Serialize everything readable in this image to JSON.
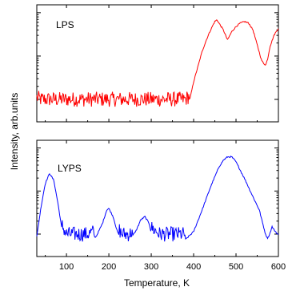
{
  "chart_data": [
    {
      "type": "line",
      "panel": "top",
      "series": [
        {
          "name": "LPS",
          "color": "#ff0000"
        }
      ],
      "panel_label": "LPS",
      "x": [
        30,
        40,
        60,
        80,
        100,
        150,
        200,
        250,
        300,
        350,
        380,
        390,
        395,
        400,
        410,
        420,
        430,
        440,
        450,
        455,
        460,
        470,
        480,
        490,
        500,
        510,
        520,
        530,
        540,
        550,
        560,
        565,
        570,
        575,
        580,
        590,
        600
      ],
      "y": [
        1.1,
        1.0,
        1.0,
        1.0,
        1.0,
        1.0,
        1.0,
        1.0,
        1.0,
        1.0,
        1.0,
        1.2,
        1.8,
        2.4,
        3.3,
        4.2,
        4.9,
        5.5,
        6.0,
        6.1,
        5.9,
        5.5,
        4.9,
        5.4,
        5.7,
        5.9,
        6.0,
        5.9,
        5.5,
        4.6,
        3.7,
        3.5,
        3.4,
        3.8,
        4.5,
        5.2,
        5.6
      ],
      "noise_floor_range": [
        30,
        390
      ],
      "ylim": [
        0,
        7
      ],
      "yscale": "log",
      "yticks": "unlabeled"
    },
    {
      "type": "line",
      "panel": "bottom",
      "series": [
        {
          "name": "LYPS",
          "color": "#0000ff"
        }
      ],
      "panel_label": "LYPS",
      "x": [
        30,
        40,
        50,
        60,
        70,
        80,
        90,
        100,
        150,
        170,
        185,
        195,
        200,
        210,
        220,
        230,
        250,
        265,
        275,
        285,
        295,
        300,
        320,
        350,
        380,
        400,
        420,
        440,
        460,
        470,
        480,
        490,
        500,
        520,
        540,
        555,
        565,
        570,
        575,
        580,
        585,
        590,
        600
      ],
      "y": [
        1.2,
        3.0,
        4.4,
        5.0,
        4.6,
        3.2,
        1.5,
        1.0,
        1.0,
        1.2,
        2.0,
        2.8,
        2.9,
        2.4,
        1.5,
        1.0,
        1.0,
        1.6,
        2.2,
        2.4,
        2.0,
        1.4,
        1.0,
        1.0,
        1.0,
        1.5,
        2.8,
        4.2,
        5.4,
        5.8,
        6.0,
        6.0,
        5.7,
        4.7,
        3.6,
        2.8,
        1.8,
        1.3,
        1.1,
        1.4,
        1.8,
        1.6,
        1.3
      ],
      "noise_floor_ranges": [
        [
          90,
          165
        ],
        [
          225,
          255
        ],
        [
          300,
          380
        ]
      ],
      "ylim": [
        0,
        7
      ],
      "yscale": "log",
      "yticks": "unlabeled"
    }
  ],
  "axes": {
    "xlabel": "Temperature, K",
    "ylabel": "Intensity, arb.units",
    "xlim": [
      30,
      600
    ],
    "xticks": [
      100,
      200,
      300,
      400,
      500,
      600
    ]
  }
}
